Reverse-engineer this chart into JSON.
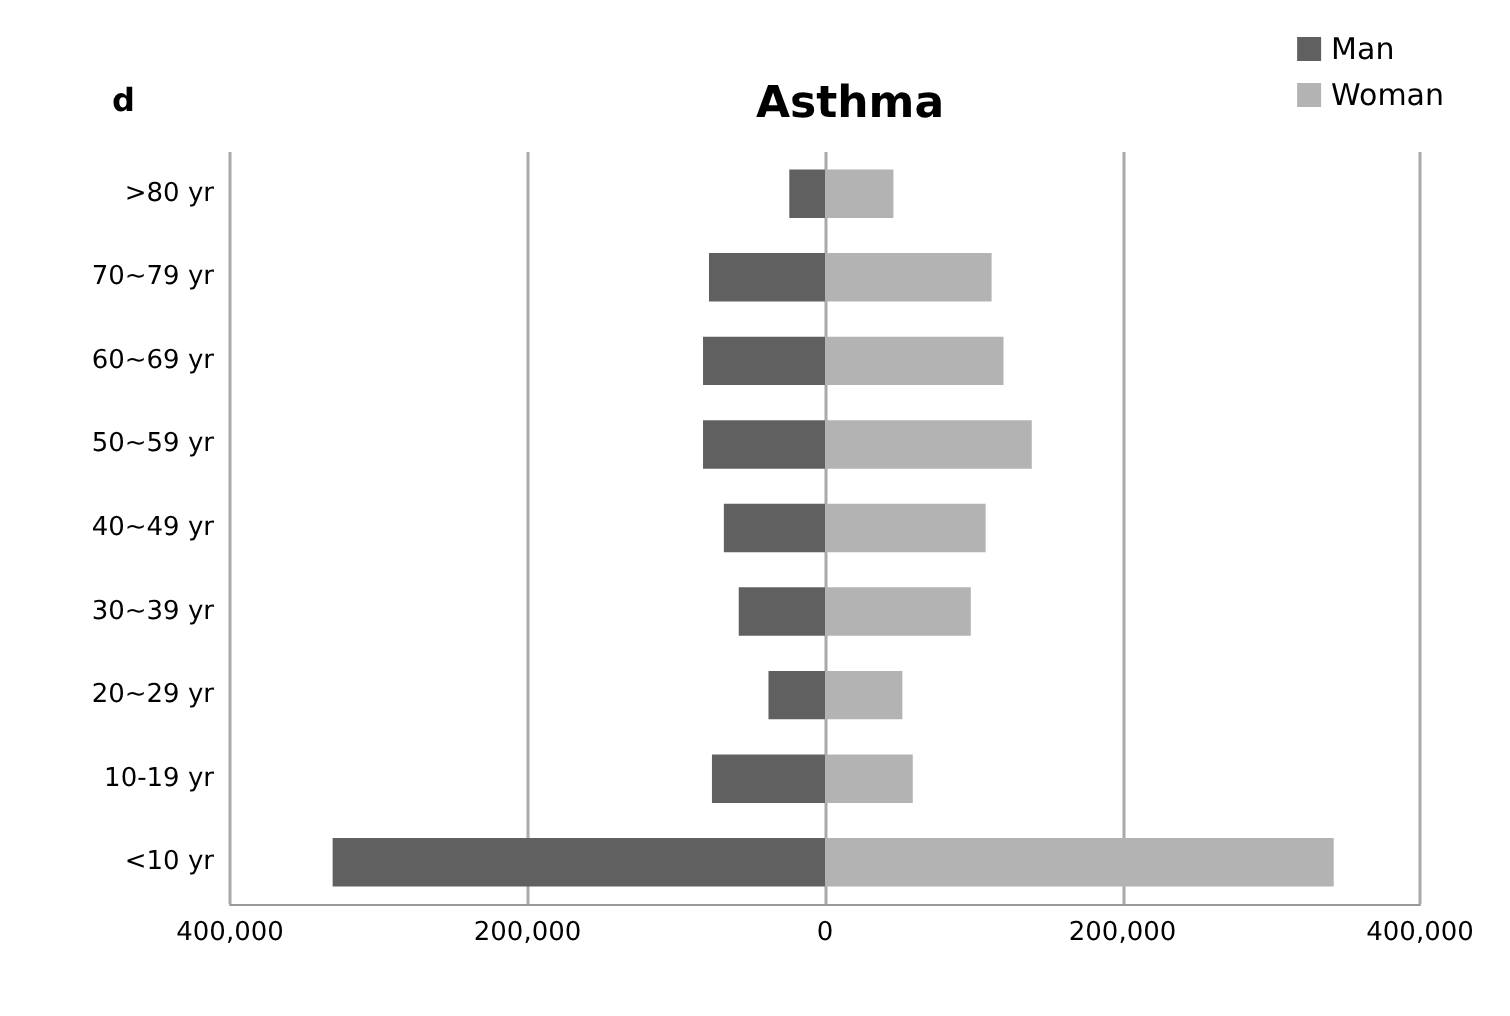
{
  "chart_data": {
    "type": "bar",
    "orientation": "horizontal",
    "stacked": true,
    "title": "Asthma",
    "annotations": [
      "d"
    ],
    "categories": [
      ">80 yr",
      "70~79 yr",
      "60~69 yr",
      "50~59 yr",
      "40~49 yr",
      "30~39 yr",
      "20~29 yr",
      "10-19 yr",
      "<10 yr"
    ],
    "series": [
      {
        "name": "Man",
        "color": "#606060",
        "values": [
          -24000,
          -78000,
          -82000,
          -82000,
          -68000,
          -58000,
          -38000,
          -76000,
          -331000
        ]
      },
      {
        "name": "Woman",
        "color": "#b3b3b3",
        "values": [
          46000,
          112000,
          120000,
          139000,
          108000,
          98000,
          52000,
          59000,
          342000
        ]
      }
    ],
    "xlim": [
      -400000,
      400000
    ],
    "xticks": [
      {
        "value": -400000,
        "label": "400,000"
      },
      {
        "value": -200000,
        "label": "200,000"
      },
      0,
      {
        "value": 200000,
        "label": "200,000"
      },
      {
        "value": 400000,
        "label": "400,000"
      }
    ],
    "grid": "x",
    "legend": "top right"
  }
}
